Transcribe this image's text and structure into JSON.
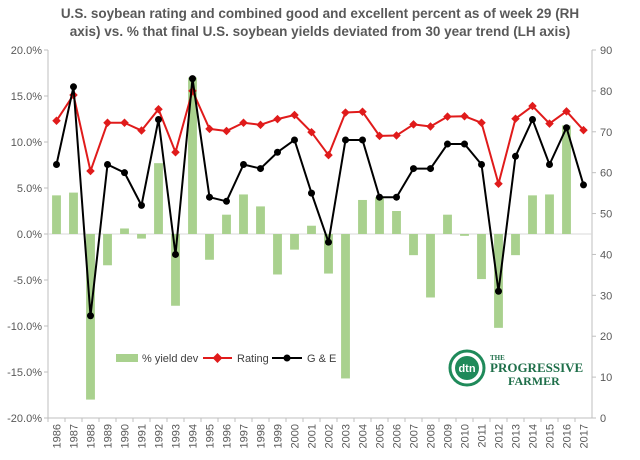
{
  "chart_data": {
    "type": "bar+line",
    "title_lines": [
      "U.S. soybean rating and combined good and excellent percent as of week 29 (RH",
      "axis) vs. % that final U.S. soybean yields deviated from 30 year trend (LH axis)"
    ],
    "categories": [
      "1986",
      "1987",
      "1988",
      "1989",
      "1990",
      "1991",
      "1992",
      "1993",
      "1994",
      "1995",
      "1996",
      "1997",
      "1998",
      "1999",
      "2000",
      "2001",
      "2002",
      "2003",
      "2004",
      "2005",
      "2006",
      "2007",
      "2008",
      "2009",
      "2010",
      "2011",
      "2012",
      "2013",
      "2014",
      "2015",
      "2016",
      "2017"
    ],
    "left_axis": {
      "min": -20,
      "max": 20,
      "step": 5,
      "tick_labels": [
        "-20.0%",
        "-15.0%",
        "-10.0%",
        "-5.0%",
        "0.0%",
        "5.0%",
        "10.0%",
        "15.0%",
        "20.0%"
      ]
    },
    "right_axis": {
      "min": 0,
      "max": 90,
      "step": 10,
      "tick_labels": [
        "0",
        "10",
        "20",
        "30",
        "40",
        "50",
        "60",
        "70",
        "80",
        "90"
      ]
    },
    "grid": false,
    "legend_position": "bottom-left",
    "series": [
      {
        "name": "% yield dev",
        "type": "bar",
        "axis": "left",
        "color": "#a9d18e",
        "values": [
          4.2,
          4.5,
          -18,
          -3.4,
          0.6,
          -0.5,
          7.7,
          -7.8,
          17,
          -2.8,
          2.1,
          4.3,
          3.0,
          -4.4,
          -1.7,
          0.9,
          -4.3,
          -15.7,
          3.7,
          4.0,
          2.5,
          -2.3,
          -6.9,
          2.1,
          -0.2,
          -4.9,
          -10.2,
          -2.3,
          4.2,
          4.3,
          11.8,
          0
        ]
      },
      {
        "name": "Rating",
        "type": "line",
        "axis": "right",
        "color": "#e01b1b",
        "marker": "diamond",
        "values": [
          72.7,
          79,
          60.4,
          72.2,
          72.2,
          70.3,
          75.5,
          65,
          80,
          70.7,
          70.2,
          72.2,
          71.7,
          73.1,
          74.1,
          69.9,
          64.3,
          74.7,
          74.9,
          69,
          69.1,
          71.8,
          71.3,
          73.7,
          73.8,
          72.2,
          57.3,
          73.2,
          76.3,
          72,
          75,
          70.4
        ]
      },
      {
        "name": "G & E",
        "type": "line",
        "axis": "right",
        "color": "#000000",
        "marker": "circle",
        "values": [
          62,
          81,
          25,
          62,
          60,
          52,
          73,
          40,
          83,
          54,
          53,
          62,
          61,
          65,
          68,
          55,
          43,
          68,
          68,
          54,
          54,
          61,
          61,
          67,
          67,
          62,
          31,
          64,
          73,
          62,
          71,
          57
        ]
      }
    ],
    "logo": {
      "badge": "dtn",
      "line1": "THE",
      "line2": "PROGRESSIVE",
      "line3": "FARMER"
    }
  }
}
